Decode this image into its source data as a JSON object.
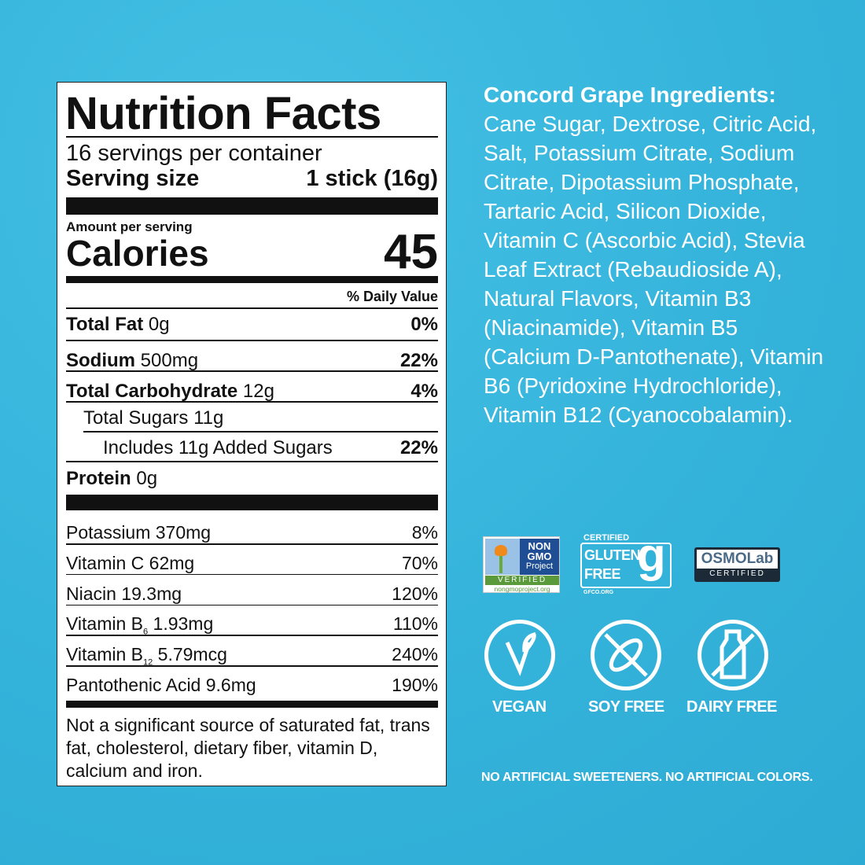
{
  "nutrition": {
    "title": "Nutrition Facts",
    "servings": "16 servings per container",
    "serving_size_label": "Serving size",
    "serving_size_value": "1 stick (16g)",
    "amount_per_serving": "Amount per serving",
    "calories_label": "Calories",
    "calories_value": "45",
    "dv_header": "% Daily Value",
    "rows": [
      {
        "name": "Total Fat",
        "amount": "0g",
        "dv": "0%"
      },
      {
        "name": "Sodium",
        "amount": "500mg",
        "dv": "22%"
      },
      {
        "name": "Total Carbohydrate",
        "amount": "12g",
        "dv": "4%"
      },
      {
        "name": "Total Sugars 11g"
      },
      {
        "name": "Includes 11g Added Sugars",
        "dv": "22%"
      },
      {
        "name": "Protein",
        "amount": "0g"
      }
    ],
    "vitamins": [
      {
        "name": "Potassium",
        "amount": "370mg",
        "dv": "8%"
      },
      {
        "name": "Vitamin C",
        "amount": "62mg",
        "dv": "70%"
      },
      {
        "name": "Niacin",
        "amount": "19.3mg",
        "dv": "120%"
      },
      {
        "name": "Vitamin B",
        "sub": "6",
        "amount": "1.93mg",
        "dv": "110%"
      },
      {
        "name": "Vitamin B",
        "sub": "12",
        "amount": "5.79mcg",
        "dv": "240%"
      },
      {
        "name": "Pantothenic Acid",
        "amount": "9.6mg",
        "dv": "190%"
      }
    ],
    "footnote": "Not a significant source of saturated fat, trans fat, cholesterol, dietary fiber, vitamin D, calcium and iron."
  },
  "ingredients": {
    "heading": "Concord Grape Ingredients:",
    "text": "Cane Sugar, Dextrose, Citric Acid, Salt, Potassium Citrate, Sodium Citrate, Dipotassium Phosphate, Tartaric Acid, Silicon Dioxide, Vitamin C (Ascorbic Acid), Stevia Leaf Extract (Rebaudioside A), Natural Flavors, Vitamin B3 (Niacinamide), Vitamin B5 (Calcium D-Pantothenate), Vitamin B6 (Pyridoxine Hydrochloride), Vitamin B12 (Cyanocobalamin)."
  },
  "badges": {
    "nongmo": {
      "line1": "NON",
      "line2": "GMO",
      "line3": "Project",
      "verified": "VERIFIED",
      "url": "nongmoproject.org"
    },
    "gluten": {
      "certified": "CERTIFIED",
      "line1": "GLUTEN",
      "line2": "FREE",
      "url": "GFCO.ORG"
    },
    "osmo": {
      "name": "OSMOLab",
      "certified": "CERTIFIED"
    }
  },
  "icons": [
    {
      "icon": "vegan-leaf-icon",
      "label": "VEGAN"
    },
    {
      "icon": "soy-free-icon",
      "label": "SOY FREE"
    },
    {
      "icon": "dairy-free-icon",
      "label": "DAIRY FREE"
    }
  ],
  "claim": "NO ARTIFICIAL SWEETENERS. NO ARTIFICIAL COLORS.",
  "colors": {
    "background": "#36b5dc",
    "text_on_bg": "#ffffff",
    "label_ink": "#111111"
  }
}
